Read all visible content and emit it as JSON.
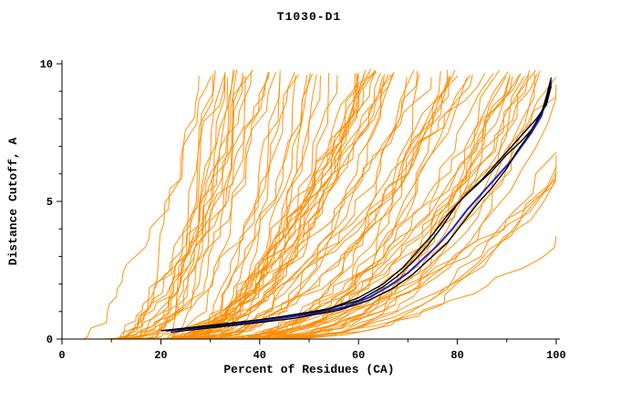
{
  "chart_data": {
    "type": "line",
    "title": "T1030-D1",
    "xlabel": "Percent of Residues (CA)",
    "ylabel": "Distance Cutoff, A",
    "xlim": [
      0,
      100
    ],
    "ylim": [
      0,
      10
    ],
    "x_ticks": [
      0,
      20,
      40,
      60,
      80,
      100
    ],
    "x_tick_labels": [
      "0",
      "20",
      "40",
      "60",
      "80",
      "100"
    ],
    "x_minor_ticks": [
      10,
      30,
      50,
      70,
      90
    ],
    "y_ticks": [
      0,
      5,
      10
    ],
    "y_tick_labels": [
      "0",
      "5",
      "10"
    ],
    "y_minor_ticks": [
      1,
      2,
      3,
      4,
      6,
      7,
      8,
      9
    ],
    "grid": false,
    "legend": "none",
    "colors": {
      "ensemble": "#ff8c00",
      "best_model": "#2222c8",
      "top_models": "#000000",
      "axis": "#000000",
      "background": "#ffffff"
    },
    "ensemble": {
      "name": "prediction-curves",
      "color": "#ff8c00",
      "count": 92,
      "seed": 1030,
      "description": "Cloud of ~90 orange GDT curves (one per prediction); curves rise monotonically from ~0 A, onset between ~3% and ~45% of residues, reaching the 10 A cutoff anywhere from ~28% to beyond 100% of residues"
    },
    "series": [
      {
        "name": "top-model-1",
        "color": "#000000",
        "width": 1.4,
        "points": [
          [
            20,
            0.3
          ],
          [
            32,
            0.5
          ],
          [
            44,
            0.8
          ],
          [
            54,
            1.1
          ],
          [
            60,
            1.5
          ],
          [
            65,
            2.0
          ],
          [
            69,
            2.6
          ],
          [
            72,
            3.2
          ],
          [
            75,
            3.8
          ],
          [
            78,
            4.5
          ],
          [
            81,
            5.1
          ],
          [
            84,
            5.6
          ],
          [
            87,
            6.1
          ],
          [
            90,
            6.7
          ],
          [
            93,
            7.2
          ],
          [
            95,
            7.6
          ],
          [
            97,
            8.2
          ],
          [
            98,
            8.8
          ],
          [
            99,
            9.5
          ]
        ]
      },
      {
        "name": "top-model-2",
        "color": "#000000",
        "width": 1.4,
        "points": [
          [
            22,
            0.25
          ],
          [
            35,
            0.5
          ],
          [
            47,
            0.75
          ],
          [
            56,
            1.05
          ],
          [
            62,
            1.4
          ],
          [
            67,
            1.85
          ],
          [
            71,
            2.35
          ],
          [
            74,
            2.85
          ],
          [
            78,
            3.5
          ],
          [
            81,
            4.2
          ],
          [
            84,
            4.9
          ],
          [
            87,
            5.5
          ],
          [
            90,
            6.2
          ],
          [
            92,
            6.8
          ],
          [
            94,
            7.3
          ],
          [
            96,
            7.9
          ],
          [
            98,
            8.6
          ],
          [
            99,
            9.3
          ]
        ]
      },
      {
        "name": "top-model-3",
        "color": "#000000",
        "width": 1.4,
        "points": [
          [
            20,
            0.3
          ],
          [
            40,
            0.7
          ],
          [
            52,
            1.0
          ],
          [
            60,
            1.4
          ],
          [
            65,
            1.9
          ],
          [
            68,
            2.3
          ],
          [
            71,
            2.8
          ],
          [
            74,
            3.4
          ],
          [
            77,
            4.1
          ],
          [
            80,
            4.9
          ],
          [
            82,
            5.3
          ],
          [
            85,
            5.8
          ],
          [
            88,
            6.4
          ],
          [
            91,
            7.0
          ],
          [
            94,
            7.6
          ],
          [
            96,
            8.0
          ],
          [
            98,
            8.5
          ],
          [
            99,
            9.2
          ]
        ]
      },
      {
        "name": "best-model",
        "color": "#2222c8",
        "width": 2,
        "points": [
          [
            21,
            0.3
          ],
          [
            30,
            0.45
          ],
          [
            40,
            0.65
          ],
          [
            50,
            0.9
          ],
          [
            57,
            1.15
          ],
          [
            62,
            1.5
          ],
          [
            66,
            1.9
          ],
          [
            70,
            2.4
          ],
          [
            73,
            2.9
          ],
          [
            76,
            3.4
          ],
          [
            79,
            4.0
          ],
          [
            82,
            4.7
          ],
          [
            85,
            5.3
          ],
          [
            88,
            5.9
          ],
          [
            91,
            6.5
          ],
          [
            93,
            7.0
          ],
          [
            95,
            7.5
          ],
          [
            97,
            8.1
          ],
          [
            98,
            8.7
          ],
          [
            99,
            9.4
          ]
        ]
      }
    ]
  }
}
